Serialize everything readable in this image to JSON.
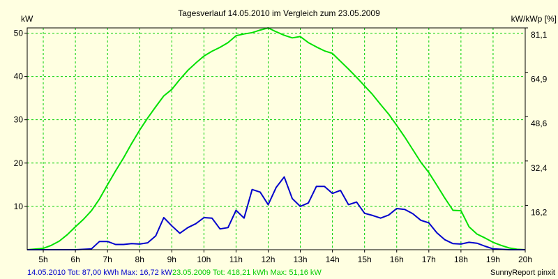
{
  "chart_data": {
    "type": "line",
    "title": "Tagesverlauf 14.05.2010 im Vergleich zum 23.05.2009",
    "ylabel_left": "kW",
    "ylabel_right": "kW/kWp [%]",
    "xlim": [
      4.5,
      20.0
    ],
    "ylim": [
      0,
      51.2
    ],
    "x_ticks": [
      {
        "x": 5,
        "label": "5h"
      },
      {
        "x": 6,
        "label": "6h"
      },
      {
        "x": 7,
        "label": "7h"
      },
      {
        "x": 8,
        "label": "8h"
      },
      {
        "x": 9,
        "label": "9h"
      },
      {
        "x": 10,
        "label": "10h"
      },
      {
        "x": 11,
        "label": "11h"
      },
      {
        "x": 12,
        "label": "12h"
      },
      {
        "x": 13,
        "label": "13h"
      },
      {
        "x": 14,
        "label": "14h"
      },
      {
        "x": 15,
        "label": "15h"
      },
      {
        "x": 16,
        "label": "16h"
      },
      {
        "x": 17,
        "label": "17h"
      },
      {
        "x": 18,
        "label": "18h"
      },
      {
        "x": 19,
        "label": "19h"
      },
      {
        "x": 20,
        "label": "20h"
      }
    ],
    "y_ticks_left": [
      {
        "y": 10,
        "label": "10"
      },
      {
        "y": 20,
        "label": "20"
      },
      {
        "y": 30,
        "label": "30"
      },
      {
        "y": 40,
        "label": "40"
      },
      {
        "y": 50,
        "label": "50"
      }
    ],
    "y_ticks_right": [
      {
        "y": 10.24,
        "label": "16,2"
      },
      {
        "y": 20.48,
        "label": "32,4"
      },
      {
        "y": 30.72,
        "label": "48,6"
      },
      {
        "y": 40.96,
        "label": "64,9"
      },
      {
        "y": 51.2,
        "label": "81,1"
      }
    ],
    "grid": true,
    "series": [
      {
        "name": "23.05.2009",
        "color": "#00E000",
        "x": [
          4.5,
          5.0,
          5.25,
          5.5,
          5.75,
          6.0,
          6.25,
          6.5,
          6.75,
          7.0,
          7.25,
          7.5,
          7.75,
          8.0,
          8.25,
          8.5,
          8.75,
          9.0,
          9.25,
          9.5,
          9.75,
          10.0,
          10.25,
          10.5,
          10.75,
          11.0,
          11.25,
          11.5,
          11.75,
          12.0,
          12.25,
          12.5,
          12.75,
          13.0,
          13.25,
          13.5,
          13.75,
          14.0,
          14.25,
          14.5,
          14.75,
          15.0,
          15.25,
          15.5,
          15.75,
          16.0,
          16.25,
          16.5,
          16.75,
          17.0,
          17.25,
          17.5,
          17.75,
          18.0,
          18.25,
          18.5,
          18.75,
          19.0,
          19.25,
          19.5,
          19.75,
          20.0
        ],
        "values": [
          0,
          0.3,
          1.0,
          2.0,
          3.5,
          5.3,
          7.0,
          9.0,
          11.7,
          15.0,
          18.2,
          21.2,
          24.5,
          27.6,
          30.4,
          33.0,
          35.5,
          37.0,
          39.3,
          41.4,
          43.1,
          44.7,
          45.8,
          46.7,
          47.8,
          49.4,
          49.8,
          50.1,
          50.7,
          51.2,
          50.3,
          49.5,
          48.9,
          49.2,
          47.8,
          46.8,
          45.9,
          45.3,
          43.5,
          41.7,
          39.8,
          37.8,
          35.8,
          33.5,
          31.3,
          28.7,
          26.0,
          23.1,
          20.2,
          17.8,
          14.9,
          11.9,
          9.1,
          9.0,
          5.3,
          3.6,
          2.7,
          1.7,
          1.0,
          0.4,
          0.1,
          0
        ]
      },
      {
        "name": "14.05.2010",
        "color": "#0000CC",
        "x": [
          4.5,
          5.0,
          6.0,
          6.5,
          6.75,
          7.0,
          7.25,
          7.5,
          7.75,
          8.0,
          8.25,
          8.5,
          8.75,
          9.0,
          9.25,
          9.5,
          9.75,
          10.0,
          10.25,
          10.5,
          10.75,
          11.0,
          11.25,
          11.5,
          11.75,
          12.0,
          12.25,
          12.5,
          12.75,
          13.0,
          13.25,
          13.5,
          13.75,
          14.0,
          14.25,
          14.5,
          14.75,
          15.0,
          15.25,
          15.5,
          15.75,
          16.0,
          16.25,
          16.5,
          16.75,
          17.0,
          17.25,
          17.5,
          17.75,
          18.0,
          18.25,
          18.5,
          18.75,
          19.0,
          19.5,
          20.0
        ],
        "values": [
          0,
          0,
          0,
          0.2,
          1.9,
          1.9,
          1.2,
          1.2,
          1.4,
          1.3,
          1.6,
          3.2,
          7.4,
          5.5,
          3.8,
          5.1,
          6.0,
          7.4,
          7.3,
          4.8,
          5.1,
          9.1,
          7.3,
          13.9,
          13.3,
          10.4,
          14.4,
          16.8,
          11.8,
          10.0,
          10.8,
          14.6,
          14.6,
          13.0,
          13.7,
          10.4,
          11.0,
          8.4,
          7.9,
          7.3,
          8.0,
          9.5,
          9.3,
          8.3,
          6.8,
          6.2,
          3.9,
          2.3,
          1.4,
          1.3,
          1.7,
          1.5,
          0.8,
          0.2,
          0,
          0
        ]
      }
    ]
  },
  "footer": {
    "blue_info": "14.05.2010 Tot: 87,00 kWh Max: 16,72 kW",
    "green_info": "23.05.2009 Tot: 418,21 kWh Max: 51,16 kW",
    "credit": "SunnyReport pinxit"
  },
  "colors": {
    "background": "#FFFFE1",
    "grid": "#00D000",
    "axis": "#000000"
  }
}
